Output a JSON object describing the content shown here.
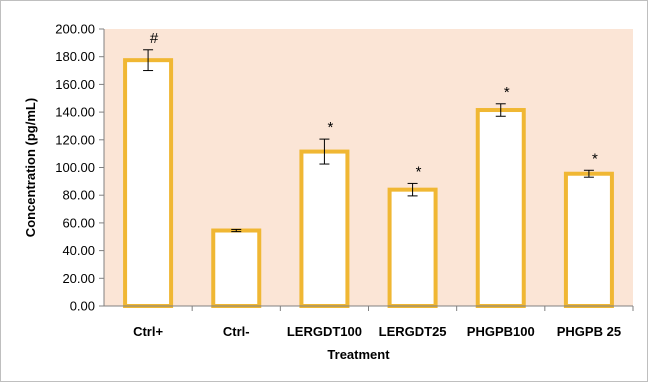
{
  "chart_data": {
    "type": "bar",
    "categories": [
      "Ctrl+",
      "Ctrl-",
      "LERGDT100",
      "LERGDT25",
      "PHGPB100",
      "PHGPB 25"
    ],
    "series": [
      {
        "values": [
          177.5,
          54.5,
          111.5,
          84.0,
          141.5,
          95.5
        ],
        "error": [
          7.5,
          0.8,
          9.0,
          4.5,
          4.5,
          2.5
        ],
        "annotations": [
          "#",
          "",
          "*",
          "*",
          "*",
          "*"
        ]
      }
    ],
    "y_ticks": [
      "0.00",
      "20.00",
      "40.00",
      "60.00",
      "80.00",
      "100.00",
      "120.00",
      "140.00",
      "160.00",
      "180.00",
      "200.00"
    ],
    "ylim": [
      0,
      200
    ],
    "xlabel": "Treatment",
    "ylabel": "Concentration (pg/mL)",
    "grid": false,
    "colors": {
      "plot_background": "#fbe5d6",
      "bar_fill": "#ffffff",
      "bar_border": "#f0b733",
      "axis": "#808080"
    }
  }
}
